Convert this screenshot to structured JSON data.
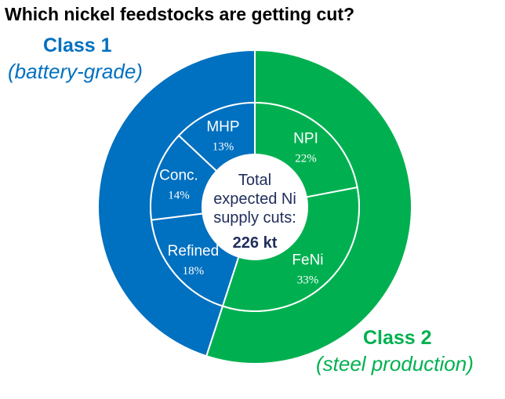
{
  "title": "Which nickel feedstocks are getting cut?",
  "class1": {
    "label": "Class 1",
    "sublabel": "(battery-grade)",
    "color": "#0070C0"
  },
  "class2": {
    "label": "Class 2",
    "sublabel": "(steel production)",
    "color": "#00B050"
  },
  "center": {
    "line1": "Total",
    "line2": "expected Ni",
    "line3": "supply cuts:",
    "line4": "226 kt",
    "color": "#1F2D5A"
  },
  "chart_data": {
    "type": "donut",
    "title": "Which nickel feedstocks are getting cut?",
    "total_label": "226 kt",
    "outer_ring": [
      {
        "name": "Class 1",
        "value": 45,
        "color": "#0070C0"
      },
      {
        "name": "Class 2",
        "value": 55,
        "color": "#00B050"
      }
    ],
    "inner_ring": [
      {
        "name": "NPI",
        "value": 22,
        "label": "22%",
        "group": "Class 2"
      },
      {
        "name": "FeNi",
        "value": 33,
        "label": "33%",
        "group": "Class 2"
      },
      {
        "name": "Refined",
        "value": 18,
        "label": "18%",
        "group": "Class 1"
      },
      {
        "name": "Conc.",
        "value": 14,
        "label": "14%",
        "group": "Class 1"
      },
      {
        "name": "MHP",
        "value": 13,
        "label": "13%",
        "group": "Class 1"
      }
    ]
  }
}
